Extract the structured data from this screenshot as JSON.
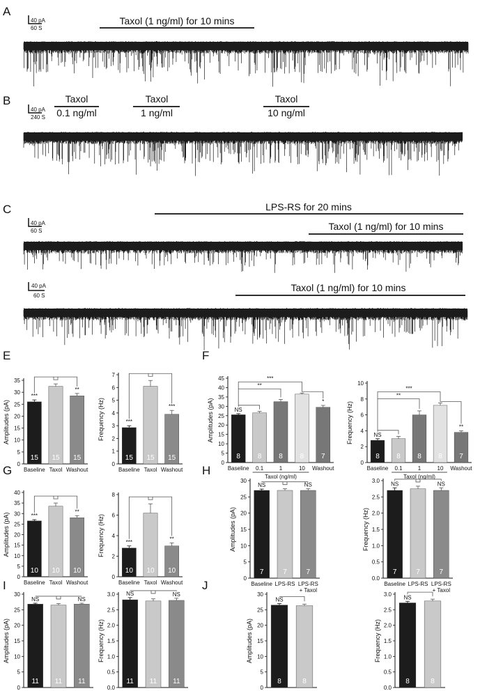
{
  "traces": [
    {
      "id": "A",
      "scale": {
        "y": "40 pA",
        "x": "60 S"
      },
      "bars": [
        {
          "label": "Taxol (1 ng/ml) for 10 mins"
        }
      ],
      "density": 0.55
    },
    {
      "id": "B",
      "scale": {
        "y": "40 pA",
        "x": "240 S"
      },
      "bars": [
        {
          "label": "Taxol",
          "label2": "0.1 ng/ml"
        },
        {
          "label": "Taxol",
          "label2": "1 ng/ml"
        },
        {
          "label": "Taxol",
          "label2": "10 ng/ml"
        }
      ],
      "density": 0.75
    },
    {
      "id": "C",
      "scale": {
        "y": "40 pA",
        "x": "60 S"
      },
      "bars": [
        {
          "label": "LPS-RS for 20 mins"
        },
        {
          "label": "Taxol (1 ng/ml) for 10 mins"
        }
      ],
      "density": 0.35
    },
    {
      "id": "",
      "scale": {
        "y": "40 pA",
        "x": "60 S"
      },
      "bars": [
        {
          "label": "Taxol (1 ng/ml) for 10 mins"
        }
      ],
      "density": 0.5
    }
  ],
  "panel_letters": {
    "E": "E",
    "F": "F",
    "G": "G",
    "H": "H",
    "I": "I",
    "J": "J"
  },
  "colors": {
    "black": "#1c1c1c",
    "light": "#c9c9c9",
    "mid": "#8a8a8a",
    "lighter": "#e2e2e2",
    "dark_gray": "#777777"
  },
  "chart_data": [
    {
      "id": "E-amp",
      "panel": "E",
      "type": "bar",
      "ylabel": "Amplitudes (pA)",
      "ylim": [
        0,
        35
      ],
      "yticks": [
        0,
        5,
        10,
        15,
        20,
        25,
        30,
        35
      ],
      "categories": [
        "Baseline",
        "Taxol",
        "Washout"
      ],
      "values": [
        26,
        32.5,
        28.5
      ],
      "errors": [
        0.8,
        1.0,
        1.0
      ],
      "n": [
        "15",
        "15",
        "15"
      ],
      "sig": [
        "***",
        "",
        "**"
      ]
    },
    {
      "id": "E-freq",
      "panel": "E",
      "type": "bar",
      "ylabel": "Frequency (Hz)",
      "ylim": [
        0,
        7
      ],
      "yticks": [
        0,
        1,
        2,
        3,
        4,
        5,
        6,
        7
      ],
      "categories": [
        "Baseline",
        "Taxol",
        "Washout"
      ],
      "values": [
        2.85,
        6.1,
        3.9
      ],
      "errors": [
        0.15,
        0.45,
        0.3
      ],
      "n": [
        "15",
        "15",
        "15"
      ],
      "sig": [
        "***",
        "",
        "***"
      ]
    },
    {
      "id": "F-amp",
      "panel": "F",
      "type": "bar",
      "ylabel": "Amplitudes (pA)",
      "ylim": [
        0,
        45
      ],
      "yticks": [
        0,
        5,
        10,
        15,
        20,
        25,
        30,
        35,
        40,
        45
      ],
      "categories": [
        "Baseline",
        "0.1",
        "1",
        "10",
        "Washout"
      ],
      "values": [
        25.5,
        26.5,
        32.5,
        36.5,
        29.5
      ],
      "errors": [
        0.6,
        0.8,
        1.2,
        0.6,
        1.0
      ],
      "n": [
        "8",
        "8",
        "8",
        "8",
        "7"
      ],
      "sig": [
        "NS",
        "",
        "",
        "",
        "*"
      ],
      "sig_top": [
        "***",
        "**"
      ],
      "group_label": "Taxol (ng/ml)"
    },
    {
      "id": "F-freq",
      "panel": "F",
      "type": "bar",
      "ylabel": "Frequency (Hz)",
      "ylim": [
        0,
        10
      ],
      "yticks": [
        0,
        2,
        4,
        6,
        8,
        10
      ],
      "categories": [
        "Baseline",
        "0.1",
        "1",
        "10",
        "Washout"
      ],
      "values": [
        2.8,
        3.0,
        6.0,
        7.2,
        3.8
      ],
      "errors": [
        0.2,
        0.3,
        0.5,
        0.3,
        0.2
      ],
      "n": [
        "8",
        "8",
        "8",
        "8",
        "7"
      ],
      "sig": [
        "NS",
        "",
        "",
        "",
        "**"
      ],
      "sig_top": [
        "***",
        "**"
      ],
      "group_label": "Taxol (ng/ml)"
    },
    {
      "id": "G-amp",
      "panel": "G",
      "type": "bar",
      "ylabel": "Amplitudes (pA)",
      "ylim": [
        0,
        40
      ],
      "yticks": [
        0,
        5,
        10,
        15,
        20,
        25,
        30,
        35,
        40
      ],
      "categories": [
        "Baseline",
        "Taxol",
        "Washout"
      ],
      "values": [
        26.5,
        33.5,
        28.0
      ],
      "errors": [
        0.6,
        1.5,
        1.0
      ],
      "n": [
        "10",
        "10",
        "10"
      ],
      "sig": [
        "***",
        "",
        "**"
      ]
    },
    {
      "id": "G-freq",
      "panel": "G",
      "type": "bar",
      "ylabel": "Frequency (Hz)",
      "ylim": [
        0,
        8
      ],
      "yticks": [
        0,
        2,
        4,
        6,
        8
      ],
      "categories": [
        "Baseline",
        "Taxol",
        "Washout"
      ],
      "values": [
        2.8,
        6.2,
        3.0
      ],
      "errors": [
        0.2,
        0.9,
        0.3
      ],
      "n": [
        "10",
        "10",
        "10"
      ],
      "sig": [
        "***",
        "",
        "**"
      ]
    },
    {
      "id": "H-amp",
      "panel": "H",
      "type": "bar",
      "ylabel": "Amplitudes (pA)",
      "ylim": [
        0,
        30
      ],
      "yticks": [
        0,
        5,
        10,
        15,
        20,
        25,
        30
      ],
      "categories": [
        "Baseline",
        "LPS-RS",
        "LPS-RS\n+ Taxol"
      ],
      "values": [
        27.0,
        27.0,
        27.0
      ],
      "errors": [
        0.4,
        0.5,
        0.5
      ],
      "n": [
        "7",
        "7",
        "7"
      ],
      "sig": [
        "NS",
        "",
        "NS"
      ]
    },
    {
      "id": "H-freq",
      "panel": "H",
      "type": "bar",
      "ylabel": "Frequency (Hz)",
      "ylim": [
        0,
        3.0
      ],
      "yticks": [
        0.0,
        0.5,
        1.0,
        1.5,
        2.0,
        2.5,
        3.0
      ],
      "categories": [
        "Baseline",
        "LPS-RS",
        "LPS-RS\n+ Taxol"
      ],
      "values": [
        2.7,
        2.75,
        2.7
      ],
      "errors": [
        0.08,
        0.08,
        0.08
      ],
      "n": [
        "7",
        "7",
        "7"
      ],
      "sig": [
        "NS",
        "",
        "NS"
      ]
    },
    {
      "id": "I-amp",
      "panel": "I",
      "type": "bar",
      "ylabel": "Amplitudes (pA)",
      "ylim": [
        0,
        30
      ],
      "yticks": [
        0,
        5,
        10,
        15,
        20,
        25,
        30
      ],
      "categories": [
        "Baseline",
        "LPS-RS",
        "LPS-RS\n+ Taxol"
      ],
      "values": [
        26.8,
        26.5,
        26.8
      ],
      "errors": [
        0.3,
        0.5,
        0.3
      ],
      "n": [
        "11",
        "11",
        "11"
      ],
      "sig": [
        "NS",
        "",
        "NS"
      ]
    },
    {
      "id": "I-freq",
      "panel": "I",
      "type": "bar",
      "ylabel": "Frequency (Hz)",
      "ylim": [
        0,
        3.0
      ],
      "yticks": [
        0.0,
        0.5,
        1.0,
        1.5,
        2.0,
        2.5,
        3.0
      ],
      "categories": [
        "Baseline",
        "LPS-RS",
        "LPS-RS\n+ Taxol"
      ],
      "values": [
        2.82,
        2.78,
        2.8
      ],
      "errors": [
        0.07,
        0.07,
        0.07
      ],
      "n": [
        "11",
        "11",
        "11"
      ],
      "sig": [
        "NS",
        "",
        "NS"
      ]
    },
    {
      "id": "J-amp",
      "panel": "J",
      "type": "bar",
      "ylabel": "Amplitudes (pA)",
      "ylim": [
        0,
        30
      ],
      "yticks": [
        0,
        5,
        10,
        15,
        20,
        25,
        30
      ],
      "categories": [
        "Baseline",
        "Taxol"
      ],
      "values": [
        26.5,
        26.3
      ],
      "errors": [
        0.5,
        0.5
      ],
      "n": [
        "8",
        "8"
      ],
      "sig": [
        "NS",
        ""
      ]
    },
    {
      "id": "J-freq",
      "panel": "J",
      "type": "bar",
      "ylabel": "Frequency (Hz)",
      "ylim": [
        0,
        3.0
      ],
      "yticks": [
        0.0,
        0.5,
        1.0,
        1.5,
        2.0,
        2.5,
        3.0
      ],
      "categories": [
        "Baseline",
        "Taxol"
      ],
      "values": [
        2.72,
        2.78
      ],
      "errors": [
        0.05,
        0.06
      ],
      "n": [
        "8",
        "8"
      ],
      "sig": [
        "NS",
        ""
      ]
    }
  ]
}
